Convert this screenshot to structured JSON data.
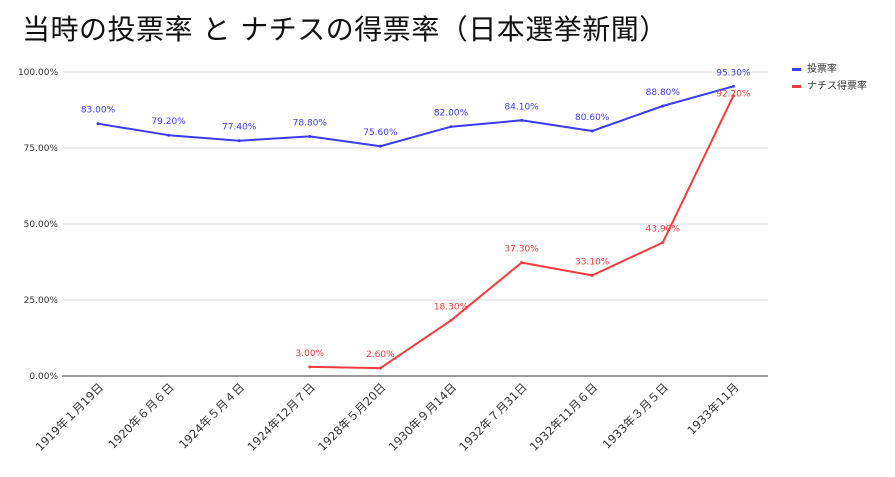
{
  "chart_data": {
    "type": "line",
    "title": "当時の投票率 と ナチスの得票率（日本選挙新聞）",
    "xlabel": "",
    "ylabel": "",
    "ylim": [
      0,
      100
    ],
    "y_ticks": [
      {
        "value": 0,
        "label": "0.00%"
      },
      {
        "value": 25,
        "label": "25.00%"
      },
      {
        "value": 50,
        "label": "50.00%"
      },
      {
        "value": 75,
        "label": "75.00%"
      },
      {
        "value": 100,
        "label": "100.00%"
      }
    ],
    "categories": [
      "1919年１月19日",
      "1920年６月６日",
      "1924年５月４日",
      "1924年12月７日",
      "1928年５月20日",
      "1930年９月14日",
      "1932年７月31日",
      "1932年11月６日",
      "1933年３月５日",
      "1933年11月"
    ],
    "series": [
      {
        "name": "投票率",
        "color": "#3b3bf5",
        "values": [
          83.0,
          79.2,
          77.4,
          78.8,
          75.6,
          82.0,
          84.1,
          80.6,
          88.8,
          95.3
        ],
        "labels": [
          "83.00%",
          "79.20%",
          "77.40%",
          "78.80%",
          "75.60%",
          "82.00%",
          "84.10%",
          "80.60%",
          "88.80%",
          "95.30%"
        ]
      },
      {
        "name": "ナチス得票率",
        "color": "#f53b3b",
        "values": [
          null,
          null,
          null,
          3.0,
          2.6,
          18.3,
          37.3,
          33.1,
          43.9,
          92.2
        ],
        "labels": [
          null,
          null,
          null,
          "3.00%",
          "2.60%",
          "18.30%",
          "37.30%",
          "33.10%",
          "43.90%",
          "92.20%"
        ]
      }
    ],
    "legend_position": "top-right",
    "grid": true
  }
}
